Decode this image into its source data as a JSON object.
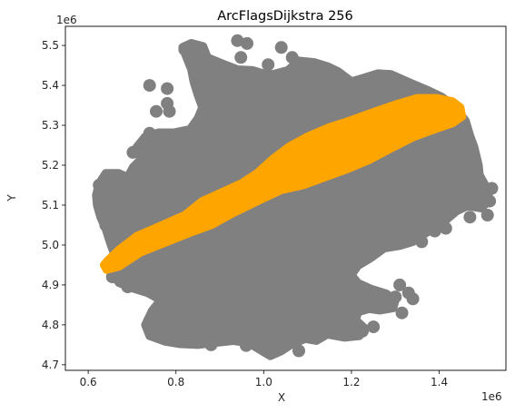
{
  "chart_data": {
    "type": "scatter",
    "title": "ArcFlagsDijkstra 256",
    "xlabel": "X",
    "ylabel": "Y",
    "x_offset_label": "1e6",
    "y_offset_label": "1e6",
    "xlim": [
      0.548,
      1.552
    ],
    "ylim": [
      4.686,
      5.548
    ],
    "xticks": [
      0.6,
      0.8,
      1.0,
      1.2,
      1.4
    ],
    "xtick_labels": [
      "0.6",
      "0.8",
      "1.0",
      "1.2",
      "1.4"
    ],
    "yticks": [
      4.7,
      4.8,
      4.9,
      5.0,
      5.1,
      5.2,
      5.3,
      5.4,
      5.5
    ],
    "ytick_labels": [
      "4.7",
      "4.8",
      "4.9",
      "5.0",
      "5.1",
      "5.2",
      "5.3",
      "5.4",
      "5.5"
    ],
    "grid": false,
    "series": [
      {
        "color": "#808080",
        "region_outline": [
          [
            0.835,
            5.506
          ],
          [
            0.862,
            5.498
          ],
          [
            0.872,
            5.47
          ],
          [
            0.905,
            5.455
          ],
          [
            0.94,
            5.44
          ],
          [
            0.975,
            5.438
          ],
          [
            1.0,
            5.43
          ],
          [
            1.02,
            5.428
          ],
          [
            1.055,
            5.438
          ],
          [
            1.08,
            5.462
          ],
          [
            1.115,
            5.458
          ],
          [
            1.145,
            5.448
          ],
          [
            1.17,
            5.435
          ],
          [
            1.2,
            5.41
          ],
          [
            1.225,
            5.418
          ],
          [
            1.26,
            5.43
          ],
          [
            1.29,
            5.428
          ],
          [
            1.335,
            5.406
          ],
          [
            1.37,
            5.39
          ],
          [
            1.405,
            5.372
          ],
          [
            1.43,
            5.352
          ],
          [
            1.46,
            5.312
          ],
          [
            1.47,
            5.275
          ],
          [
            1.48,
            5.245
          ],
          [
            1.49,
            5.2
          ],
          [
            1.492,
            5.176
          ],
          [
            1.51,
            5.14
          ],
          [
            1.515,
            5.112
          ],
          [
            1.495,
            5.092
          ],
          [
            1.465,
            5.098
          ],
          [
            1.44,
            5.085
          ],
          [
            1.4,
            5.048
          ],
          [
            1.37,
            5.03
          ],
          [
            1.34,
            5.008
          ],
          [
            1.31,
            4.998
          ],
          [
            1.275,
            4.992
          ],
          [
            1.245,
            4.968
          ],
          [
            1.215,
            4.948
          ],
          [
            1.2,
            4.925
          ],
          [
            1.215,
            4.905
          ],
          [
            1.245,
            4.89
          ],
          [
            1.28,
            4.878
          ],
          [
            1.3,
            4.862
          ],
          [
            1.295,
            4.842
          ],
          [
            1.265,
            4.836
          ],
          [
            1.24,
            4.84
          ],
          [
            1.215,
            4.832
          ],
          [
            1.21,
            4.812
          ],
          [
            1.23,
            4.792
          ],
          [
            1.218,
            4.772
          ],
          [
            1.185,
            4.768
          ],
          [
            1.145,
            4.776
          ],
          [
            1.12,
            4.76
          ],
          [
            1.095,
            4.765
          ],
          [
            1.065,
            4.752
          ],
          [
            1.04,
            4.734
          ],
          [
            1.015,
            4.722
          ],
          [
            0.995,
            4.735
          ],
          [
            0.965,
            4.755
          ],
          [
            0.93,
            4.76
          ],
          [
            0.89,
            4.755
          ],
          [
            0.85,
            4.75
          ],
          [
            0.81,
            4.752
          ],
          [
            0.775,
            4.758
          ],
          [
            0.74,
            4.772
          ],
          [
            0.73,
            4.8
          ],
          [
            0.745,
            4.835
          ],
          [
            0.765,
            4.862
          ],
          [
            0.735,
            4.88
          ],
          [
            0.7,
            4.892
          ],
          [
            0.67,
            4.905
          ],
          [
            0.655,
            4.93
          ],
          [
            0.64,
            4.952
          ],
          [
            0.66,
            4.975
          ],
          [
            0.65,
            5.005
          ],
          [
            0.64,
            5.04
          ],
          [
            0.628,
            5.07
          ],
          [
            0.62,
            5.1
          ],
          [
            0.618,
            5.125
          ],
          [
            0.625,
            5.155
          ],
          [
            0.64,
            5.18
          ],
          [
            0.67,
            5.18
          ],
          [
            0.69,
            5.17
          ],
          [
            0.702,
            5.195
          ],
          [
            0.72,
            5.215
          ],
          [
            0.71,
            5.245
          ],
          [
            0.73,
            5.272
          ],
          [
            0.76,
            5.282
          ],
          [
            0.795,
            5.282
          ],
          [
            0.832,
            5.29
          ],
          [
            0.85,
            5.318
          ],
          [
            0.86,
            5.345
          ],
          [
            0.85,
            5.375
          ],
          [
            0.84,
            5.41
          ],
          [
            0.835,
            5.44
          ],
          [
            0.822,
            5.475
          ],
          [
            0.815,
            5.496
          ]
        ],
        "island_blobs": [
          [
            0.94,
            5.512
          ],
          [
            0.962,
            5.505
          ],
          [
            0.948,
            5.47
          ],
          [
            1.04,
            5.495
          ],
          [
            1.065,
            5.47
          ],
          [
            1.01,
            5.452
          ],
          [
            0.82,
            5.49
          ],
          [
            0.78,
            5.392
          ],
          [
            0.78,
            5.355
          ],
          [
            0.89,
            5.428
          ],
          [
            1.425,
            5.27
          ],
          [
            1.46,
            5.245
          ],
          [
            1.465,
            5.208
          ],
          [
            1.52,
            5.142
          ],
          [
            1.515,
            5.11
          ],
          [
            1.51,
            5.075
          ],
          [
            1.47,
            5.07
          ],
          [
            1.415,
            5.042
          ],
          [
            1.39,
            5.035
          ],
          [
            1.36,
            5.008
          ],
          [
            1.31,
            4.9
          ],
          [
            1.33,
            4.88
          ],
          [
            1.34,
            4.865
          ],
          [
            1.3,
            4.87
          ],
          [
            1.315,
            4.83
          ],
          [
            1.215,
            4.862
          ],
          [
            1.25,
            4.795
          ],
          [
            1.225,
            4.784
          ],
          [
            1.08,
            4.735
          ],
          [
            1.01,
            4.74
          ],
          [
            0.96,
            4.748
          ],
          [
            0.88,
            4.75
          ],
          [
            0.8,
            4.76
          ],
          [
            0.75,
            4.78
          ],
          [
            0.74,
            4.81
          ],
          [
            0.69,
            4.895
          ],
          [
            0.655,
            4.92
          ],
          [
            0.69,
            4.99
          ],
          [
            0.64,
            5.05
          ],
          [
            0.63,
            5.09
          ],
          [
            0.625,
            5.15
          ],
          [
            0.66,
            5.17
          ],
          [
            0.7,
            5.178
          ],
          [
            0.735,
            5.205
          ],
          [
            0.702,
            5.232
          ],
          [
            0.725,
            5.25
          ],
          [
            0.74,
            5.28
          ],
          [
            0.845,
            5.3
          ],
          [
            0.87,
            5.345
          ],
          [
            0.785,
            5.335
          ],
          [
            0.74,
            5.4
          ],
          [
            0.755,
            5.335
          ]
        ]
      },
      {
        "color": "#ffa500",
        "region_outline": [
          [
            0.642,
            4.938
          ],
          [
            0.67,
            4.946
          ],
          [
            0.72,
            4.982
          ],
          [
            0.78,
            5.008
          ],
          [
            0.83,
            5.03
          ],
          [
            0.88,
            5.05
          ],
          [
            0.93,
            5.08
          ],
          [
            0.99,
            5.112
          ],
          [
            1.04,
            5.138
          ],
          [
            1.09,
            5.15
          ],
          [
            1.14,
            5.17
          ],
          [
            1.19,
            5.19
          ],
          [
            1.24,
            5.213
          ],
          [
            1.29,
            5.242
          ],
          [
            1.34,
            5.27
          ],
          [
            1.39,
            5.29
          ],
          [
            1.43,
            5.305
          ],
          [
            1.452,
            5.322
          ],
          [
            1.448,
            5.345
          ],
          [
            1.43,
            5.36
          ],
          [
            1.395,
            5.368
          ],
          [
            1.35,
            5.368
          ],
          [
            1.3,
            5.352
          ],
          [
            1.25,
            5.333
          ],
          [
            1.2,
            5.313
          ],
          [
            1.15,
            5.295
          ],
          [
            1.1,
            5.272
          ],
          [
            1.06,
            5.248
          ],
          [
            1.02,
            5.215
          ],
          [
            0.985,
            5.18
          ],
          [
            0.95,
            5.155
          ],
          [
            0.9,
            5.13
          ],
          [
            0.86,
            5.11
          ],
          [
            0.82,
            5.075
          ],
          [
            0.76,
            5.046
          ],
          [
            0.71,
            5.022
          ],
          [
            0.67,
            4.988
          ],
          [
            0.645,
            4.962
          ],
          [
            0.636,
            4.95
          ]
        ]
      }
    ]
  }
}
